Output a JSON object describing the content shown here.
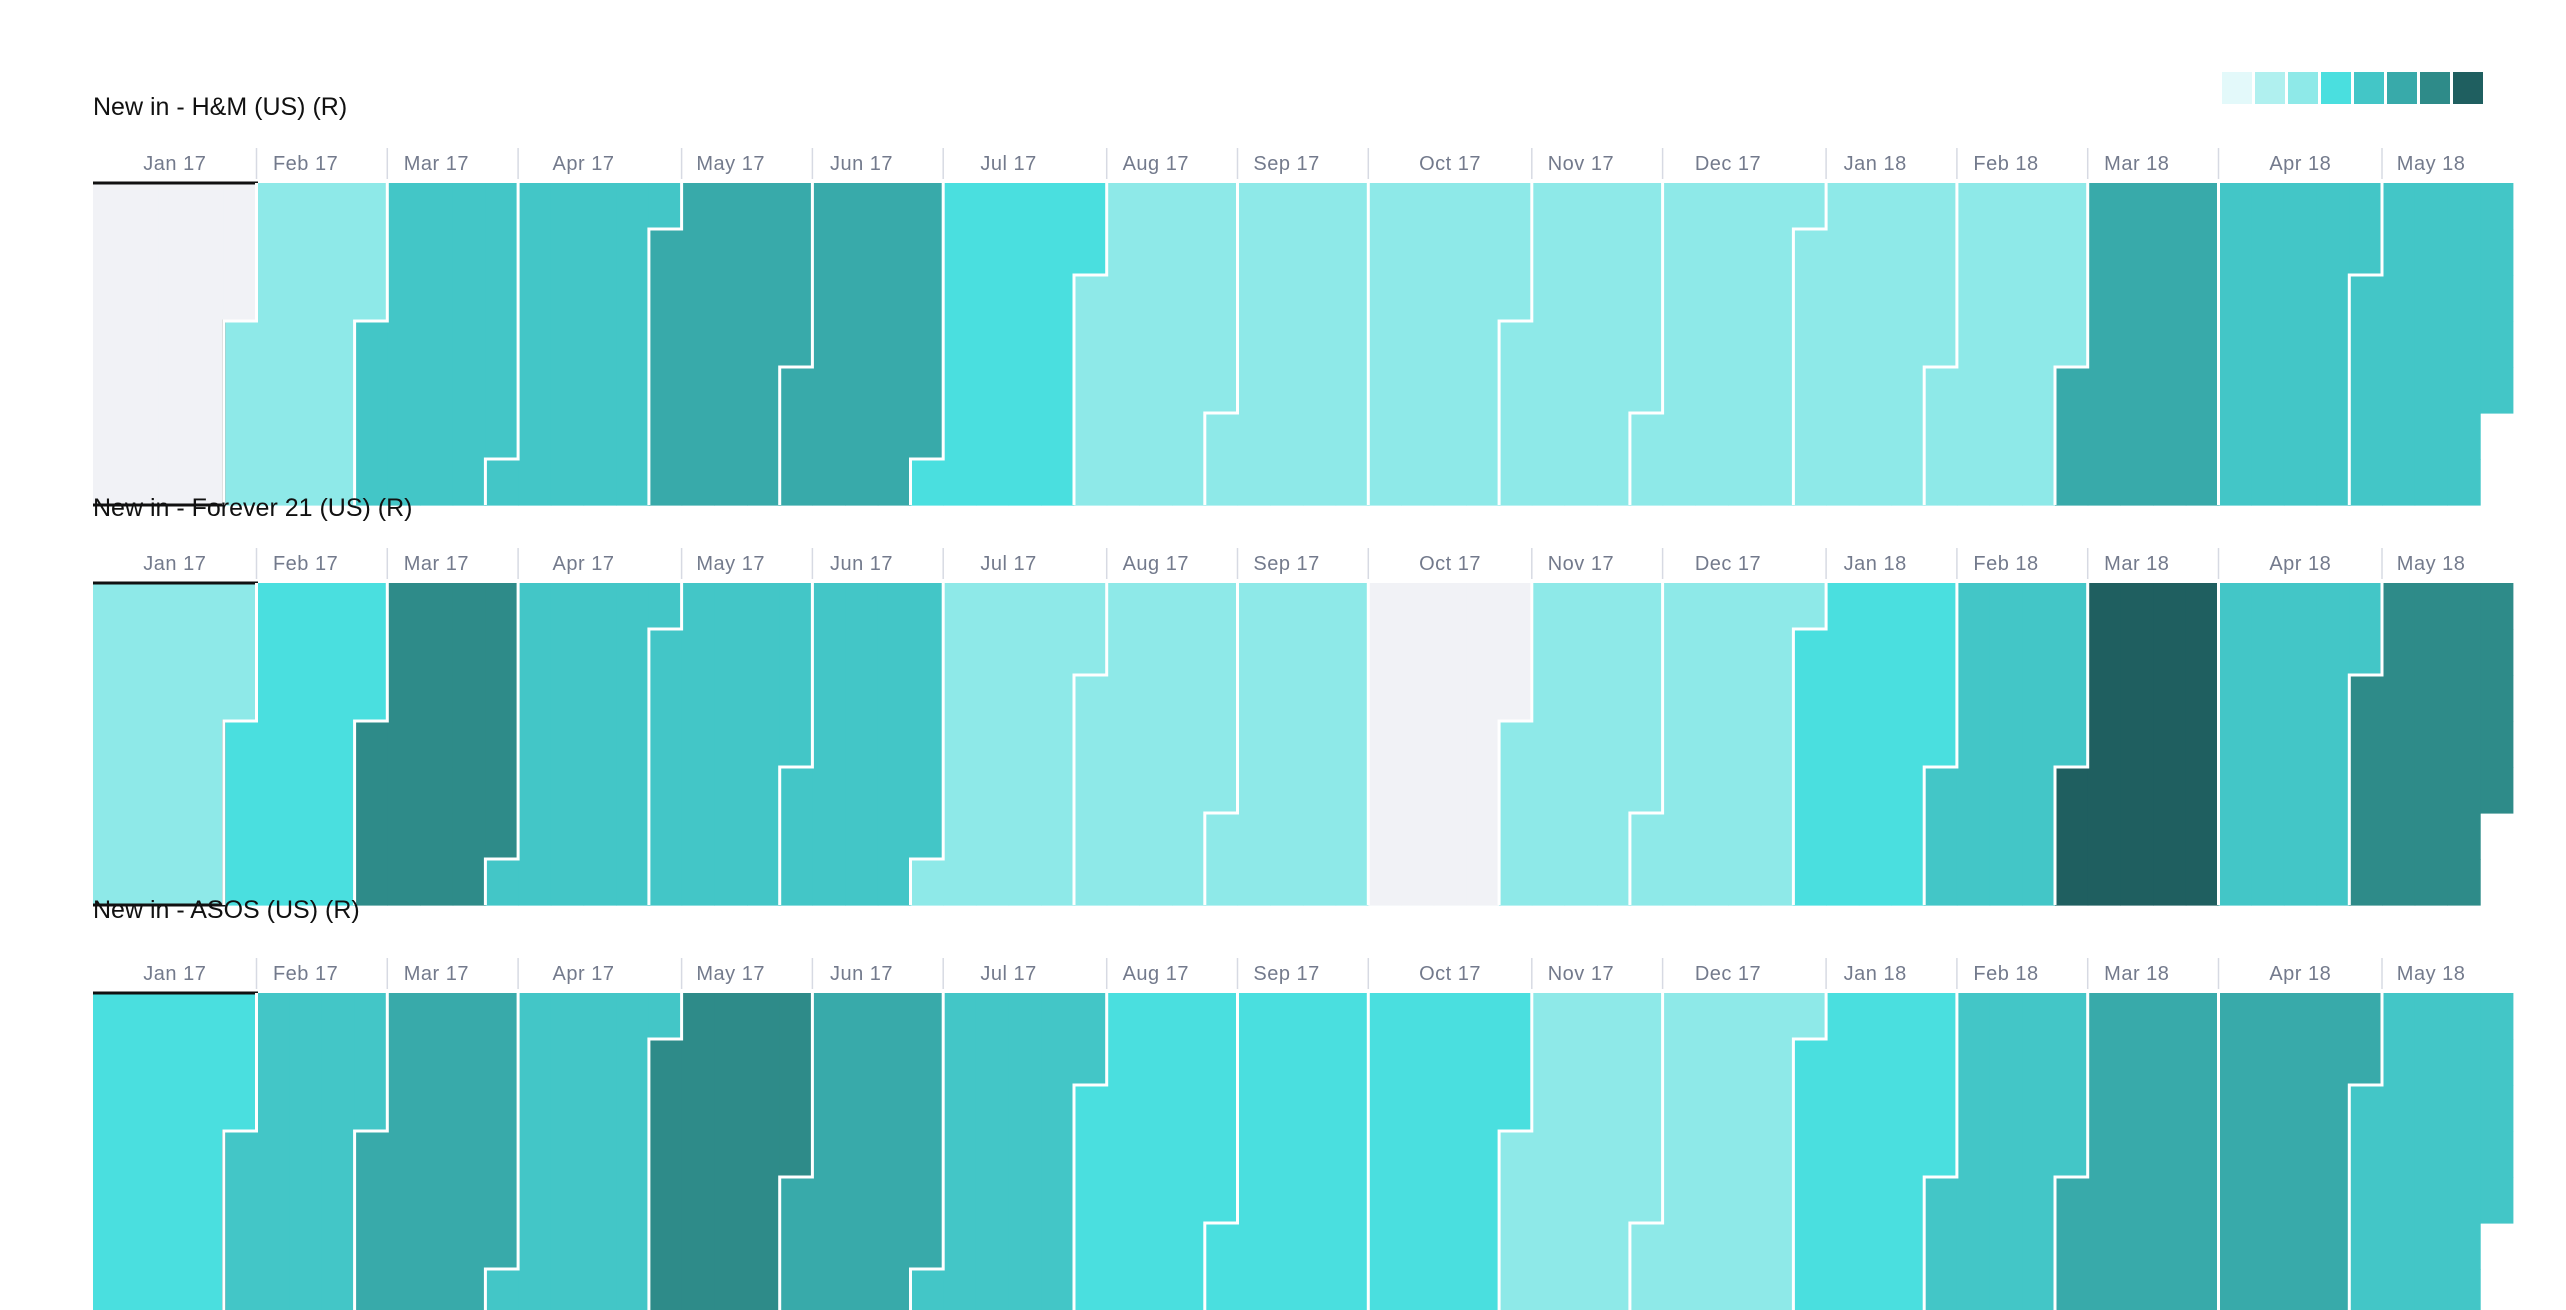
{
  "colors": {
    "empty": "#f1f2f6",
    "outline": "#111111",
    "divider": "#ffffff",
    "separator": "#d7dae3",
    "scale": [
      "#e3f9fa",
      "#b0f0ef",
      "#8ee9e8",
      "#4adfdf",
      "#43c6c7",
      "#38aaaa",
      "#2e8b89",
      "#1f5f60"
    ]
  },
  "legend": {
    "levels": 8
  },
  "chart_data": [
    {
      "type": "heatmap",
      "title": "New in - H&M (US) (R)",
      "x_labels": [
        "Jan 17",
        "Feb 17",
        "Mar 17",
        "Apr 17",
        "May 17",
        "Jun 17",
        "Jul 17",
        "Aug 17",
        "Sep 17",
        "Oct 17",
        "Nov 17",
        "Dec 17",
        "Jan 18",
        "Feb 18",
        "Mar 18",
        "Apr 18",
        "May 18"
      ],
      "weeks": [
        "2017-01-01",
        "2017-01-08",
        "2017-01-15",
        "2017-01-22",
        "2017-01-29",
        "2017-02-05",
        "2017-02-12",
        "2017-02-19",
        "2017-02-26",
        "2017-03-05",
        "2017-03-12",
        "2017-03-19",
        "2017-03-26",
        "2017-04-02",
        "2017-04-09",
        "2017-04-16",
        "2017-04-23",
        "2017-04-30",
        "2017-05-07",
        "2017-05-14",
        "2017-05-21",
        "2017-05-28",
        "2017-06-04",
        "2017-06-11",
        "2017-06-18",
        "2017-06-25",
        "2017-07-02",
        "2017-07-09",
        "2017-07-16",
        "2017-07-23",
        "2017-07-30",
        "2017-08-06",
        "2017-08-13",
        "2017-08-20",
        "2017-08-27",
        "2017-09-03",
        "2017-09-10",
        "2017-09-17",
        "2017-09-24",
        "2017-10-01",
        "2017-10-08",
        "2017-10-15",
        "2017-10-22",
        "2017-10-29",
        "2017-11-05",
        "2017-11-12",
        "2017-11-19",
        "2017-11-26",
        "2017-12-03",
        "2017-12-10",
        "2017-12-17",
        "2017-12-24",
        "2017-12-31",
        "2018-01-07",
        "2018-01-14",
        "2018-01-21",
        "2018-01-28",
        "2018-02-04",
        "2018-02-11",
        "2018-02-18",
        "2018-02-25",
        "2018-03-04",
        "2018-03-11",
        "2018-03-18",
        "2018-03-25",
        "2018-04-01",
        "2018-04-08",
        "2018-04-15",
        "2018-04-22",
        "2018-04-29",
        "2018-05-06",
        "2018-05-13",
        "2018-05-20",
        "2018-05-27"
      ],
      "months": [
        "2017-01",
        "2017-02",
        "2017-03",
        "2017-04",
        "2017-05",
        "2017-06",
        "2017-07",
        "2017-08",
        "2017-09",
        "2017-10",
        "2017-11",
        "2017-12",
        "2018-01",
        "2018-02",
        "2018-03",
        "2018-04",
        "2018-05"
      ],
      "month_levels": [
        0,
        2,
        4,
        4,
        5,
        5,
        3,
        2,
        2,
        2,
        2,
        2,
        2,
        2,
        5,
        4,
        4
      ],
      "highlight": "2017-01"
    },
    {
      "type": "heatmap",
      "title": "New in - Forever 21 (US) (R)",
      "x_labels": [
        "Jan 17",
        "Feb 17",
        "Mar 17",
        "Apr 17",
        "May 17",
        "Jun 17",
        "Jul 17",
        "Aug 17",
        "Sep 17",
        "Oct 17",
        "Nov 17",
        "Dec 17",
        "Jan 18",
        "Feb 18",
        "Mar 18",
        "Apr 18",
        "May 18"
      ],
      "weeks": [
        "2017-01-01",
        "2017-01-08",
        "2017-01-15",
        "2017-01-22",
        "2017-01-29",
        "2017-02-05",
        "2017-02-12",
        "2017-02-19",
        "2017-02-26",
        "2017-03-05",
        "2017-03-12",
        "2017-03-19",
        "2017-03-26",
        "2017-04-02",
        "2017-04-09",
        "2017-04-16",
        "2017-04-23",
        "2017-04-30",
        "2017-05-07",
        "2017-05-14",
        "2017-05-21",
        "2017-05-28",
        "2017-06-04",
        "2017-06-11",
        "2017-06-18",
        "2017-06-25",
        "2017-07-02",
        "2017-07-09",
        "2017-07-16",
        "2017-07-23",
        "2017-07-30",
        "2017-08-06",
        "2017-08-13",
        "2017-08-20",
        "2017-08-27",
        "2017-09-03",
        "2017-09-10",
        "2017-09-17",
        "2017-09-24",
        "2017-10-01",
        "2017-10-08",
        "2017-10-15",
        "2017-10-22",
        "2017-10-29",
        "2017-11-05",
        "2017-11-12",
        "2017-11-19",
        "2017-11-26",
        "2017-12-03",
        "2017-12-10",
        "2017-12-17",
        "2017-12-24",
        "2017-12-31",
        "2018-01-07",
        "2018-01-14",
        "2018-01-21",
        "2018-01-28",
        "2018-02-04",
        "2018-02-11",
        "2018-02-18",
        "2018-02-25",
        "2018-03-04",
        "2018-03-11",
        "2018-03-18",
        "2018-03-25",
        "2018-04-01",
        "2018-04-08",
        "2018-04-15",
        "2018-04-22",
        "2018-04-29",
        "2018-05-06",
        "2018-05-13",
        "2018-05-20",
        "2018-05-27"
      ],
      "months": [
        "2017-01",
        "2017-02",
        "2017-03",
        "2017-04",
        "2017-05",
        "2017-06",
        "2017-07",
        "2017-08",
        "2017-09",
        "2017-10",
        "2017-11",
        "2017-12",
        "2018-01",
        "2018-02",
        "2018-03",
        "2018-04",
        "2018-05"
      ],
      "month_levels": [
        2,
        3,
        6,
        4,
        4,
        4,
        2,
        2,
        2,
        0,
        2,
        2,
        3,
        4,
        7,
        4,
        6
      ],
      "highlight": "2017-01"
    },
    {
      "type": "heatmap",
      "title": "New in - ASOS (US) (R)",
      "x_labels": [
        "Jan 17",
        "Feb 17",
        "Mar 17",
        "Apr 17",
        "May 17",
        "Jun 17",
        "Jul 17",
        "Aug 17",
        "Sep 17",
        "Oct 17",
        "Nov 17",
        "Dec 17",
        "Jan 18",
        "Feb 18",
        "Mar 18",
        "Apr 18",
        "May 18"
      ],
      "weeks": [
        "2017-01-01",
        "2017-01-08",
        "2017-01-15",
        "2017-01-22",
        "2017-01-29",
        "2017-02-05",
        "2017-02-12",
        "2017-02-19",
        "2017-02-26",
        "2017-03-05",
        "2017-03-12",
        "2017-03-19",
        "2017-03-26",
        "2017-04-02",
        "2017-04-09",
        "2017-04-16",
        "2017-04-23",
        "2017-04-30",
        "2017-05-07",
        "2017-05-14",
        "2017-05-21",
        "2017-05-28",
        "2017-06-04",
        "2017-06-11",
        "2017-06-18",
        "2017-06-25",
        "2017-07-02",
        "2017-07-09",
        "2017-07-16",
        "2017-07-23",
        "2017-07-30",
        "2017-08-06",
        "2017-08-13",
        "2017-08-20",
        "2017-08-27",
        "2017-09-03",
        "2017-09-10",
        "2017-09-17",
        "2017-09-24",
        "2017-10-01",
        "2017-10-08",
        "2017-10-15",
        "2017-10-22",
        "2017-10-29",
        "2017-11-05",
        "2017-11-12",
        "2017-11-19",
        "2017-11-26",
        "2017-12-03",
        "2017-12-10",
        "2017-12-17",
        "2017-12-24",
        "2017-12-31",
        "2018-01-07",
        "2018-01-14",
        "2018-01-21",
        "2018-01-28",
        "2018-02-04",
        "2018-02-11",
        "2018-02-18",
        "2018-02-25",
        "2018-03-04",
        "2018-03-11",
        "2018-03-18",
        "2018-03-25",
        "2018-04-01",
        "2018-04-08",
        "2018-04-15",
        "2018-04-22",
        "2018-04-29",
        "2018-05-06",
        "2018-05-13",
        "2018-05-20",
        "2018-05-27"
      ],
      "months": [
        "2017-01",
        "2017-02",
        "2017-03",
        "2017-04",
        "2017-05",
        "2017-06",
        "2017-07",
        "2017-08",
        "2017-09",
        "2017-10",
        "2017-11",
        "2017-12",
        "2018-01",
        "2018-02",
        "2018-03",
        "2018-04",
        "2018-05"
      ],
      "month_levels": [
        3,
        4,
        5,
        4,
        6,
        5,
        4,
        3,
        3,
        3,
        2,
        2,
        3,
        4,
        5,
        5,
        4
      ],
      "highlight": "2017-01"
    }
  ]
}
